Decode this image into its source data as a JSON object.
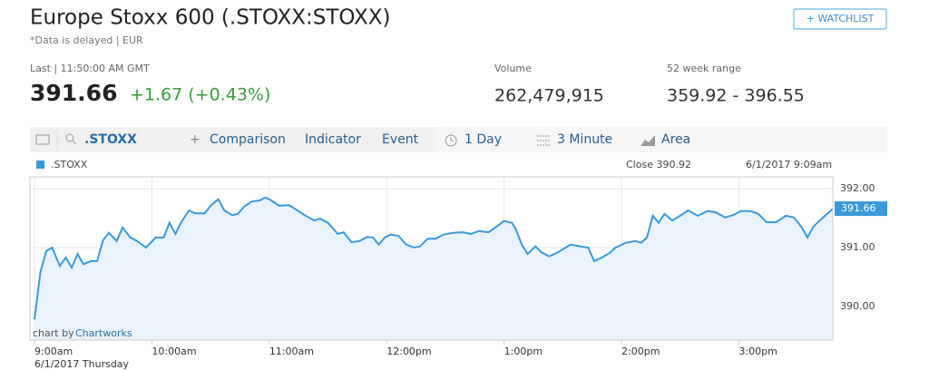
{
  "header": {
    "title": "Europe Stoxx 600 (.STOXX:STOXX)",
    "note": "*Data is delayed | EUR",
    "button": "+ WATCHLIST"
  },
  "quote": {
    "last_label": "Last | 11:50:00 AM GMT",
    "last": "391.66",
    "change": "+1.67 (+0.43%)",
    "volume_label": "Volume",
    "volume": "262,479,915",
    "range_label": "52 week range",
    "range": "359.92 - 396.55"
  },
  "toolbar": {
    "symbol": ".STOXX",
    "comparison": "Comparison",
    "indicator": "Indicator",
    "event": "Event",
    "period": "1 Day",
    "interval": "3 Minute",
    "style": "Area"
  },
  "chart_data": {
    "type": "area",
    "close_label": "Close 390.92",
    "timestamp": "6/1/2017 9:09am",
    "date_label": "6/1/2017 Thursday",
    "credit": "chart by",
    "credit_link": "Chartworks",
    "last_value_label": "391.66",
    "x": [
      0,
      3,
      6,
      9,
      13,
      16,
      19,
      22,
      25,
      29,
      32,
      35,
      38,
      42,
      45,
      49,
      52,
      57,
      62,
      66,
      69,
      72,
      75,
      79,
      82,
      87,
      90,
      94,
      97,
      101,
      104,
      107,
      111,
      115,
      118,
      121,
      125,
      130,
      133,
      138,
      143,
      146,
      150,
      155,
      158,
      162,
      166,
      170,
      173,
      176,
      179,
      182,
      186,
      190,
      194,
      197,
      201,
      205,
      209,
      214,
      219,
      223,
      227,
      232,
      236,
      240,
      244,
      246,
      249,
      252,
      256,
      259,
      263,
      267,
      270,
      274,
      279,
      283,
      286,
      290,
      294,
      297,
      302,
      307,
      310,
      313,
      316,
      319,
      322,
      326,
      330,
      334,
      339,
      344,
      348,
      353,
      357,
      361,
      366,
      370,
      374,
      379,
      384,
      388,
      392,
      395,
      398,
      401,
      405,
      408
    ],
    "series": [
      {
        "name": ".STOXX",
        "color": "#3a9ad9",
        "values": [
          389.78,
          390.58,
          390.94,
          391.0,
          390.69,
          390.83,
          390.66,
          390.89,
          390.72,
          390.77,
          390.77,
          391.12,
          391.25,
          391.11,
          391.34,
          391.17,
          391.12,
          391.0,
          391.17,
          391.17,
          391.42,
          391.23,
          391.43,
          391.63,
          391.58,
          391.58,
          391.71,
          391.82,
          391.63,
          391.55,
          391.57,
          391.69,
          391.78,
          391.8,
          391.85,
          391.8,
          391.71,
          391.72,
          391.66,
          391.55,
          391.46,
          391.49,
          391.42,
          391.23,
          391.26,
          391.09,
          391.11,
          391.18,
          391.17,
          391.05,
          391.17,
          391.22,
          391.2,
          391.05,
          391.0,
          391.02,
          391.15,
          391.15,
          391.22,
          391.25,
          391.26,
          391.23,
          391.28,
          391.26,
          391.35,
          391.45,
          391.42,
          391.31,
          391.05,
          390.89,
          391.02,
          390.92,
          390.85,
          390.91,
          390.97,
          391.05,
          391.02,
          391.0,
          390.77,
          390.83,
          390.91,
          391.0,
          391.08,
          391.11,
          391.08,
          391.17,
          391.54,
          391.42,
          391.57,
          391.46,
          391.54,
          391.63,
          391.54,
          391.62,
          391.6,
          391.51,
          391.55,
          391.62,
          391.62,
          391.57,
          391.43,
          391.43,
          391.54,
          391.51,
          391.35,
          391.17,
          391.35,
          391.45,
          391.57,
          391.66
        ]
      }
    ],
    "xlim": [
      0,
      408
    ],
    "xticks": [
      {
        "value": 0,
        "label": "9:00am"
      },
      {
        "value": 60,
        "label": "10:00am"
      },
      {
        "value": 120,
        "label": "11:00am"
      },
      {
        "value": 180,
        "label": "12:00pm"
      },
      {
        "value": 240,
        "label": "1:00pm"
      },
      {
        "value": 300,
        "label": "2:00pm"
      },
      {
        "value": 360,
        "label": "3:00pm"
      }
    ],
    "ylim": [
      389.43,
      392.2
    ],
    "yticks": [
      {
        "value": 390,
        "label": "390.00"
      },
      {
        "value": 391,
        "label": "391.00"
      },
      {
        "value": 392,
        "label": "392.00"
      }
    ],
    "grid": true
  }
}
